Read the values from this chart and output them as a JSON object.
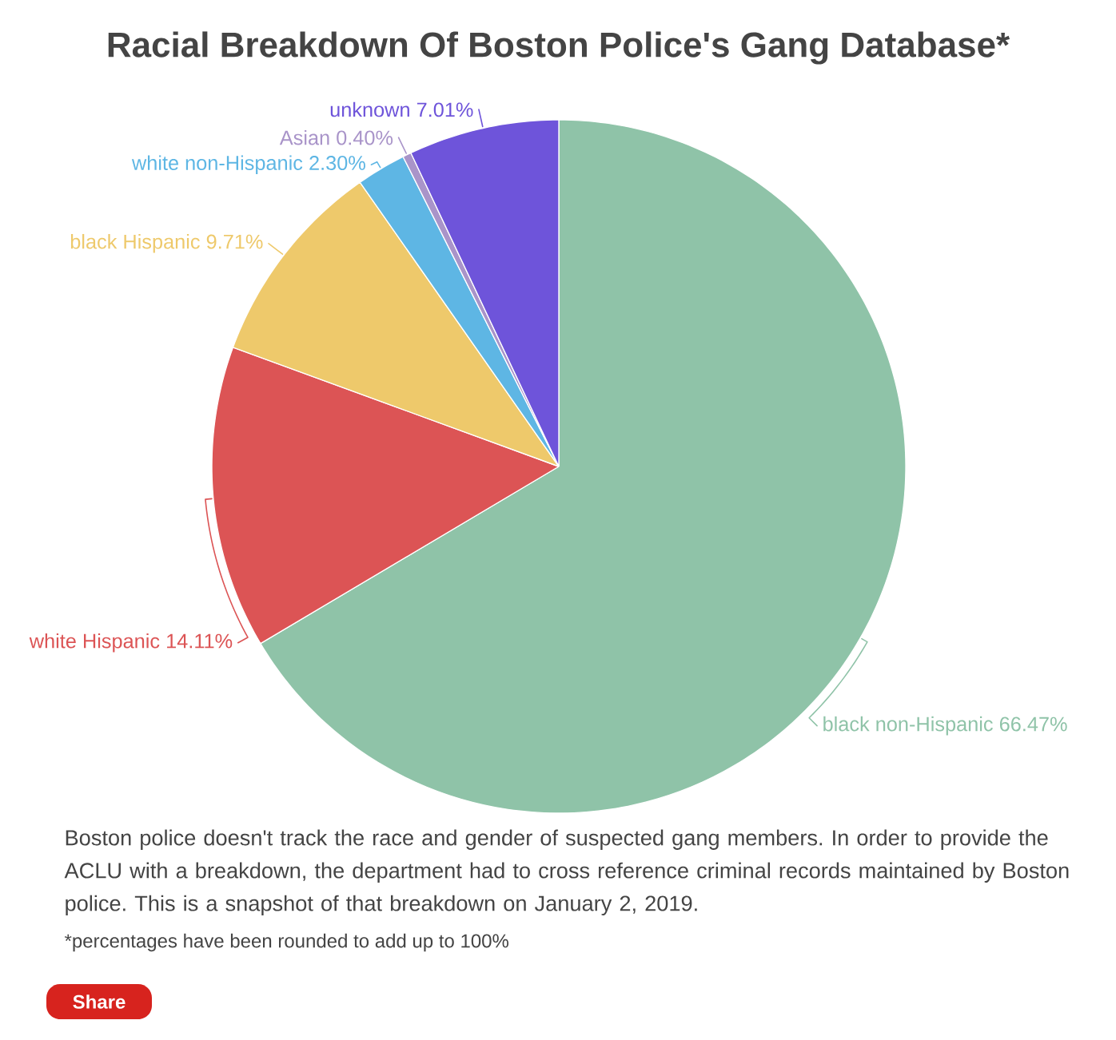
{
  "chart_data": {
    "type": "pie",
    "title": "Racial Breakdown Of Boston Police's Gang Database*",
    "categories": [
      "black non-Hispanic",
      "white Hispanic",
      "black Hispanic",
      "white non-Hispanic",
      "Asian",
      "unknown"
    ],
    "values": [
      66.47,
      14.11,
      9.71,
      2.3,
      0.4,
      7.01
    ],
    "colors": [
      "#8fc3a8",
      "#dc5455",
      "#eec96b",
      "#5eb6e4",
      "#a994c9",
      "#6e54da"
    ],
    "value_labels": [
      "66.47%",
      "14.11%",
      "9.71%",
      "2.30%",
      "0.40%",
      "7.01%"
    ],
    "annotations": [
      "Boston police doesn't track the race and gender of suspected gang members. In order to provide the ACLU with a breakdown, the department had to cross reference criminal records maintained by Boston police. This is a snapshot of that breakdown on January 2, 2019.",
      "*percentages have been rounded to add up to 100%",
      "Share"
    ]
  }
}
